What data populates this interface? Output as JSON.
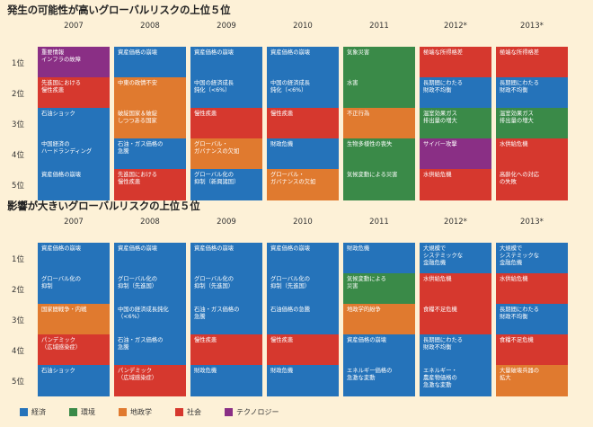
{
  "chart_data": {
    "type": "table",
    "categories": {
      "economic": {
        "label": "経済",
        "color": "#2573ba"
      },
      "environment": {
        "label": "環境",
        "color": "#3a8a48"
      },
      "geopolitical": {
        "label": "地政学",
        "color": "#e07a2f"
      },
      "societal": {
        "label": "社会",
        "color": "#d6382e"
      },
      "technological": {
        "label": "テクノロジー",
        "color": "#8a2f85"
      }
    },
    "legend_order": [
      "economic",
      "environment",
      "geopolitical",
      "societal",
      "technological"
    ],
    "years": [
      "2007",
      "2008",
      "2009",
      "2010",
      "2011",
      "2012*",
      "2013*"
    ],
    "ranks": [
      "1位",
      "2位",
      "3位",
      "4位",
      "5位"
    ],
    "panels": [
      {
        "title": "発生の可能性が高いグローバルリスクの上位５位",
        "columns": [
          [
            {
              "text": "重要情報\nインフラの故障",
              "cat": "technological"
            },
            {
              "text": "先進国における\n慢性疾患",
              "cat": "societal"
            },
            {
              "text": "石油ショック",
              "cat": "economic"
            },
            {
              "text": "中国経済の\nハードランディング",
              "cat": "economic"
            },
            {
              "text": "資産価格の崩壊",
              "cat": "economic"
            }
          ],
          [
            {
              "text": "資産価格の崩壊",
              "cat": "economic"
            },
            {
              "text": "中東の政情不安",
              "cat": "geopolitical"
            },
            {
              "text": "破綻国家＆破綻\nしつつある国家",
              "cat": "geopolitical"
            },
            {
              "text": "石油・ガス価格の\n急騰",
              "cat": "economic"
            },
            {
              "text": "先進国における\n慢性疾患",
              "cat": "societal"
            }
          ],
          [
            {
              "text": "資産価格の崩壊",
              "cat": "economic"
            },
            {
              "text": "中国の経済成長\n鈍化（<6%）",
              "cat": "economic"
            },
            {
              "text": "慢性疾患",
              "cat": "societal"
            },
            {
              "text": "グローバル・\nガバナンスの欠如",
              "cat": "geopolitical"
            },
            {
              "text": "グローバル化の\n抑制（新興諸国）",
              "cat": "economic"
            }
          ],
          [
            {
              "text": "資産価格の崩壊",
              "cat": "economic"
            },
            {
              "text": "中国の経済成長\n鈍化（<6%）",
              "cat": "economic"
            },
            {
              "text": "慢性疾患",
              "cat": "societal"
            },
            {
              "text": "財政危機",
              "cat": "economic"
            },
            {
              "text": "グローバル・\nガバナンスの欠如",
              "cat": "geopolitical"
            }
          ],
          [
            {
              "text": "気象災害",
              "cat": "environment"
            },
            {
              "text": "水害",
              "cat": "environment"
            },
            {
              "text": "不正行為",
              "cat": "geopolitical"
            },
            {
              "text": "生物多様性の喪失",
              "cat": "environment"
            },
            {
              "text": "気候変動による災害",
              "cat": "environment"
            }
          ],
          [
            {
              "text": "極端な所得格差",
              "cat": "societal"
            },
            {
              "text": "長期間にわたる\n財政不均衡",
              "cat": "economic"
            },
            {
              "text": "温室効果ガス\n排出量の増大",
              "cat": "environment"
            },
            {
              "text": "サイバー攻撃",
              "cat": "technological"
            },
            {
              "text": "水供給危機",
              "cat": "societal"
            }
          ],
          [
            {
              "text": "極端な所得格差",
              "cat": "societal"
            },
            {
              "text": "長期間にわたる\n財政不均衡",
              "cat": "economic"
            },
            {
              "text": "温室効果ガス\n排出量の増大",
              "cat": "environment"
            },
            {
              "text": "水供給危機",
              "cat": "societal"
            },
            {
              "text": "高齢化への対応\nの失敗",
              "cat": "societal"
            }
          ]
        ]
      },
      {
        "title": "影響が大きいグローバルリスクの上位５位",
        "columns": [
          [
            {
              "text": "資産価格の崩壊",
              "cat": "economic"
            },
            {
              "text": "グローバル化の\n抑制",
              "cat": "economic"
            },
            {
              "text": "国家間戦争・内戦",
              "cat": "geopolitical"
            },
            {
              "text": "パンデミック\n（広域感染症）",
              "cat": "societal"
            },
            {
              "text": "石油ショック",
              "cat": "economic"
            }
          ],
          [
            {
              "text": "資産価格の崩壊",
              "cat": "economic"
            },
            {
              "text": "グローバル化の\n抑制（先進国）",
              "cat": "economic"
            },
            {
              "text": "中国の経済成長鈍化\n（<6%）",
              "cat": "economic"
            },
            {
              "text": "石油・ガス価格の\n急騰",
              "cat": "economic"
            },
            {
              "text": "パンデミック\n（広域感染症）",
              "cat": "societal"
            }
          ],
          [
            {
              "text": "資産価格の崩壊",
              "cat": "economic"
            },
            {
              "text": "グローバル化の\n抑制（先進国）",
              "cat": "economic"
            },
            {
              "text": "石油・ガス価格の\n急騰",
              "cat": "economic"
            },
            {
              "text": "慢性疾患",
              "cat": "societal"
            },
            {
              "text": "財政危機",
              "cat": "economic"
            }
          ],
          [
            {
              "text": "資産価格の崩壊",
              "cat": "economic"
            },
            {
              "text": "グローバル化の\n抑制（先進国）",
              "cat": "economic"
            },
            {
              "text": "石油価格の急騰",
              "cat": "economic"
            },
            {
              "text": "慢性疾患",
              "cat": "societal"
            },
            {
              "text": "財政危機",
              "cat": "economic"
            }
          ],
          [
            {
              "text": "財政危機",
              "cat": "economic"
            },
            {
              "text": "気候変動による\n災害",
              "cat": "environment"
            },
            {
              "text": "地政学的紛争",
              "cat": "geopolitical"
            },
            {
              "text": "資産価格の崩壊",
              "cat": "economic"
            },
            {
              "text": "エネルギー価格の\n急激な変動",
              "cat": "economic"
            }
          ],
          [
            {
              "text": "大規模で\nシステミックな\n金融危機",
              "cat": "economic"
            },
            {
              "text": "水供給危機",
              "cat": "societal"
            },
            {
              "text": "食糧不足危機",
              "cat": "societal"
            },
            {
              "text": "長期間にわたる\n財政不均衡",
              "cat": "economic"
            },
            {
              "text": "エネルギー・\n農産物価格の\n急激な変動",
              "cat": "economic"
            }
          ],
          [
            {
              "text": "大規模で\nシステミックな\n金融危機",
              "cat": "economic"
            },
            {
              "text": "水供給危機",
              "cat": "societal"
            },
            {
              "text": "長期間にわたる\n財政不均衡",
              "cat": "economic"
            },
            {
              "text": "食糧不足危機",
              "cat": "societal"
            },
            {
              "text": "大量破壊兵器の\n拡大",
              "cat": "geopolitical"
            }
          ]
        ]
      }
    ]
  }
}
